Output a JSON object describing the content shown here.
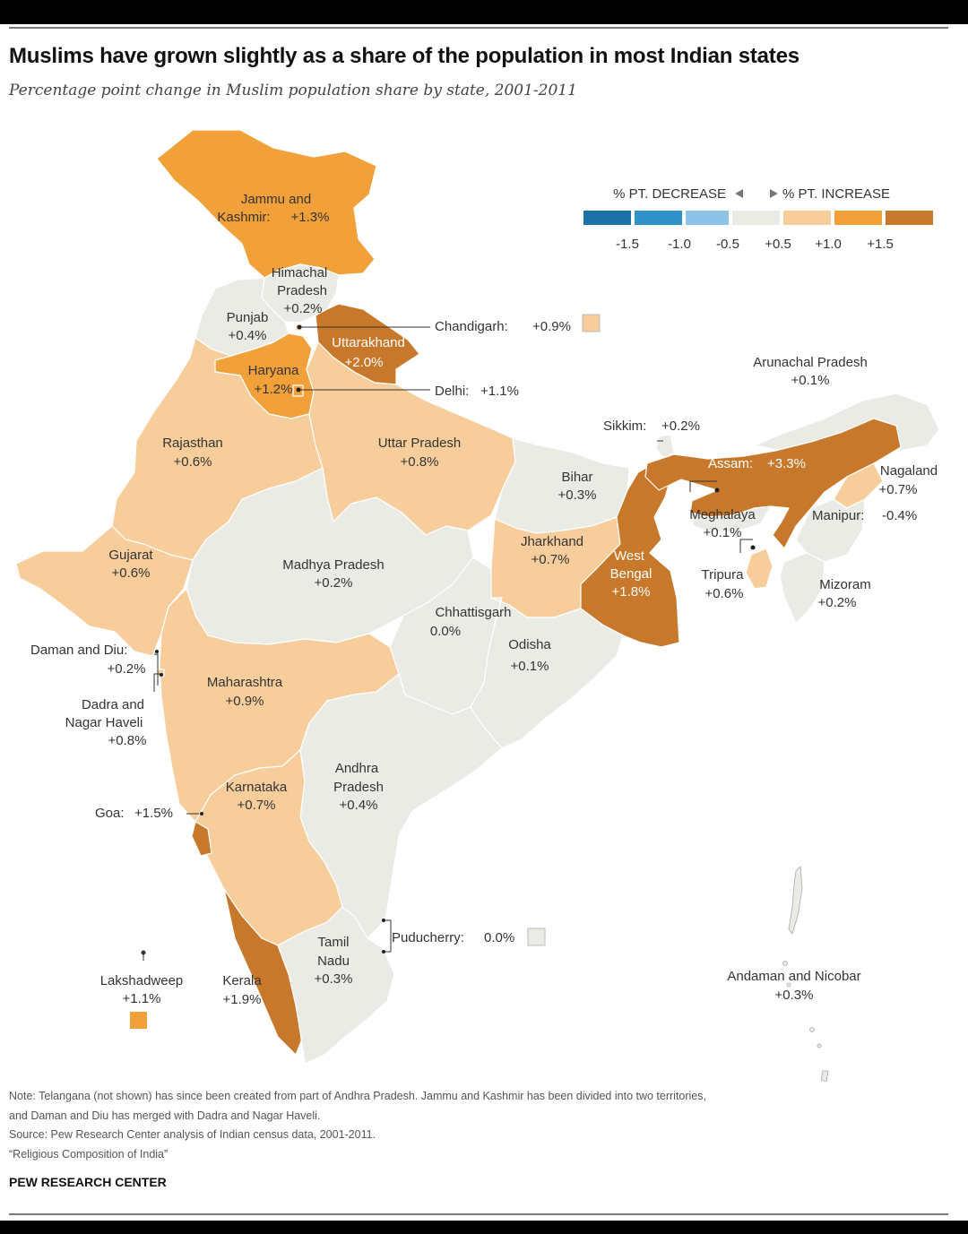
{
  "title": "Muslims have grown slightly as a share of the population in most Indian states",
  "subtitle": "Percentage point change in Muslim population share by state, 2001-2011",
  "colors": {
    "dec_15": "#1a72a8",
    "dec_10": "#2f93c9",
    "dec_05": "#8cc3e6",
    "neutral": "#ebebe6",
    "inc_05": "#f7cd9b",
    "inc_10": "#f2a03a",
    "inc_15": "#c8782b"
  },
  "legend": {
    "decrease_label": "% PT. DECREASE",
    "increase_label": "% PT. INCREASE",
    "ticks": [
      "-1.5",
      "-1.0",
      "-0.5",
      "+0.5",
      "+1.0",
      "+1.5"
    ]
  },
  "states": [
    {
      "name": "Jammu and",
      "name2": "Kashmir:",
      "value": "+1.3%"
    },
    {
      "name": "Himachal",
      "name2": "Pradesh",
      "value": "+0.2%"
    },
    {
      "name": "Punjab",
      "value": "+0.4%"
    },
    {
      "name": "Uttarakhand",
      "value": "+2.0%"
    },
    {
      "name": "Haryana",
      "value": "+1.2%"
    },
    {
      "name": "Chandigarh:",
      "value": "+0.9%"
    },
    {
      "name": "Delhi:",
      "value": "+1.1%"
    },
    {
      "name": "Rajasthan",
      "value": "+0.6%"
    },
    {
      "name": "Uttar Pradesh",
      "value": "+0.8%"
    },
    {
      "name": "Bihar",
      "value": "+0.3%"
    },
    {
      "name": "Sikkim:",
      "value": "+0.2%"
    },
    {
      "name": "Arunachal Pradesh",
      "value": "+0.1%"
    },
    {
      "name": "Assam:",
      "value": "+3.3%"
    },
    {
      "name": "Nagaland",
      "value": "+0.7%"
    },
    {
      "name": "Meghalaya",
      "value": "+0.1%"
    },
    {
      "name": "Manipur:",
      "value": "-0.4%"
    },
    {
      "name": "Tripura",
      "value": "+0.6%"
    },
    {
      "name": "Mizoram",
      "value": "+0.2%"
    },
    {
      "name": "Jharkhand",
      "value": "+0.7%"
    },
    {
      "name": "West",
      "name2": "Bengal",
      "value": "+1.8%"
    },
    {
      "name": "Gujarat",
      "value": "+0.6%"
    },
    {
      "name": "Madhya Pradesh",
      "value": "+0.2%"
    },
    {
      "name": "Chhattisgarh",
      "value": "0.0%"
    },
    {
      "name": "Odisha",
      "value": "+0.1%"
    },
    {
      "name": "Daman and Diu:",
      "value": "+0.2%"
    },
    {
      "name": "Dadra and",
      "name2": "Nagar Haveli",
      "value": "+0.8%"
    },
    {
      "name": "Maharashtra",
      "value": "+0.9%"
    },
    {
      "name": "Andhra",
      "name2": "Pradesh",
      "value": "+0.4%"
    },
    {
      "name": "Karnataka",
      "value": "+0.7%"
    },
    {
      "name": "Goa:",
      "value": "+1.5%"
    },
    {
      "name": "Puducherry:",
      "value": "0.0%"
    },
    {
      "name": "Tamil",
      "name2": "Nadu",
      "value": "+0.3%"
    },
    {
      "name": "Kerala",
      "value": "+1.9%"
    },
    {
      "name": "Lakshadweep",
      "value": "+1.1%"
    },
    {
      "name": "Andaman and Nicobar",
      "value": "+0.3%"
    }
  ],
  "notes": [
    "Note: Telangana (not shown) has since been created from part of Andhra Pradesh. Jammu and Kashmir has been divided into two territories,",
    "and Daman and Diu has merged with Dadra and Nagar Haveli.",
    "Source: Pew Research Center analysis of Indian census data, 2001-2011.",
    "“Religious Composition of India”"
  ],
  "credit": "PEW RESEARCH CENTER"
}
